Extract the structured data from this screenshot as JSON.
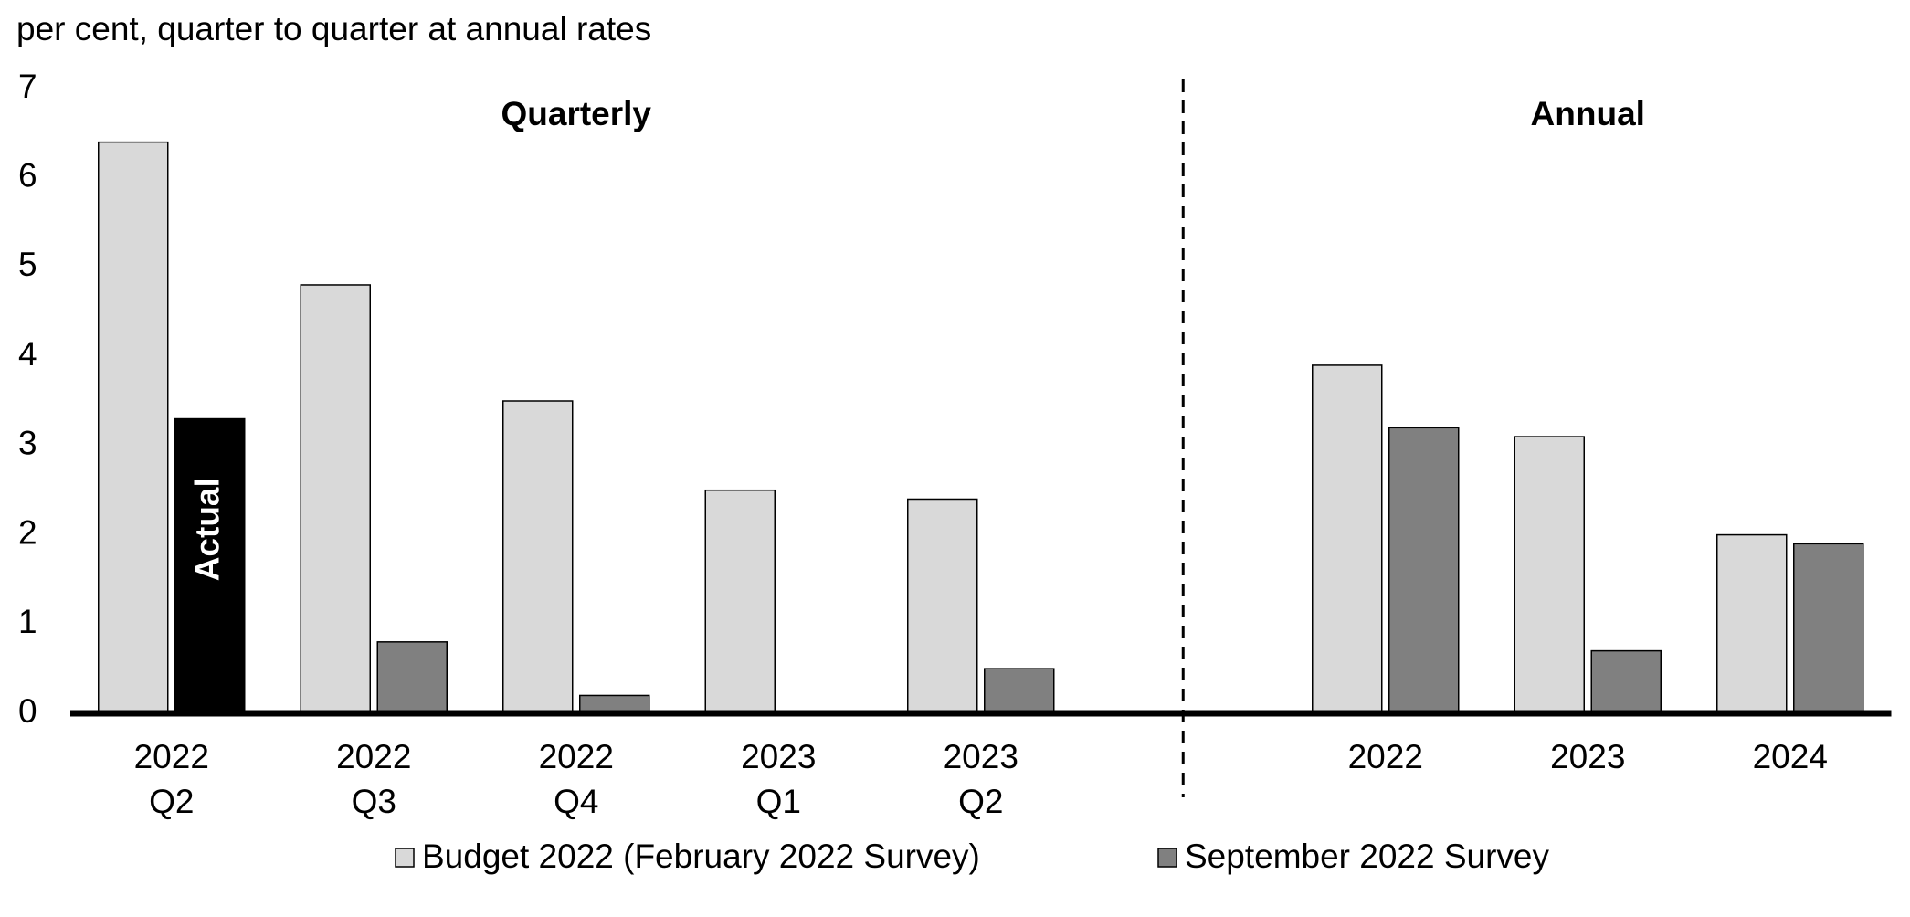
{
  "chart_data": {
    "type": "bar",
    "y_label": "per cent, quarter to quarter at annual rates",
    "categories": [
      [
        "2022",
        "Q2"
      ],
      [
        "2022",
        "Q3"
      ],
      [
        "2022",
        "Q4"
      ],
      [
        "2023",
        "Q1"
      ],
      [
        "2023",
        "Q2"
      ],
      null,
      [
        "2022"
      ],
      [
        "2023"
      ],
      [
        "2024"
      ]
    ],
    "series": [
      {
        "name": "Budget 2022 (February 2022 Survey)",
        "color": "#d9d9d9",
        "values": [
          6.4,
          4.8,
          3.5,
          2.5,
          2.4,
          null,
          3.9,
          3.1,
          2.0
        ]
      },
      {
        "name": "September 2022 Survey",
        "color": "#808080",
        "values": [
          3.3,
          0.8,
          0.2,
          null,
          0.5,
          null,
          3.2,
          0.7,
          1.9
        ]
      }
    ],
    "annotations": [
      {
        "text": "Actual",
        "series": 1,
        "index": 0,
        "color": "#000000"
      }
    ],
    "sections": [
      {
        "label": "Quarterly",
        "from": 0,
        "to": 4
      },
      {
        "label": "Annual",
        "from": 6,
        "to": 8
      }
    ],
    "ylim": [
      0,
      7
    ],
    "yticks": [
      0,
      1,
      2,
      3,
      4,
      5,
      6,
      7
    ],
    "grid": false,
    "legend": "bottom"
  }
}
